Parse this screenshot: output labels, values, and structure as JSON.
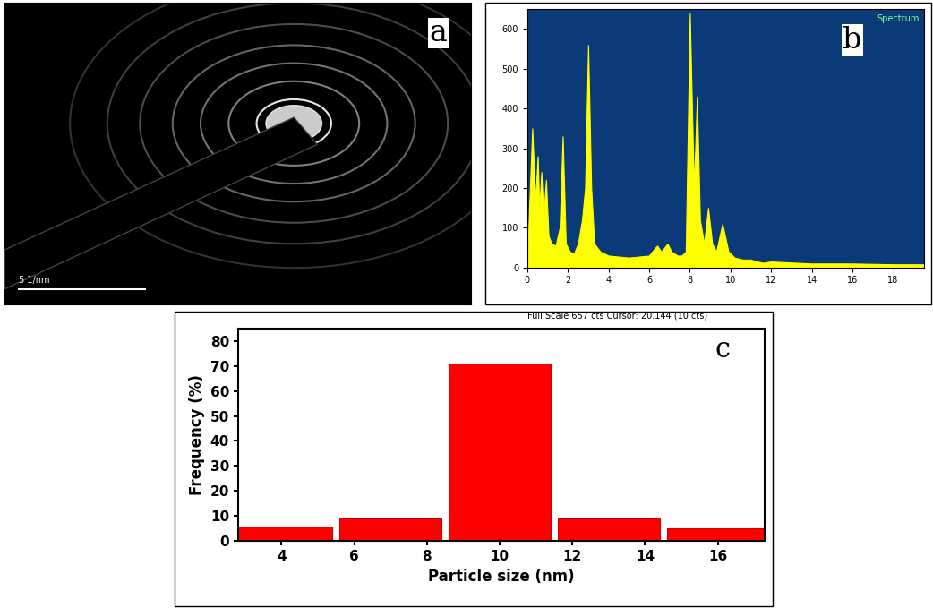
{
  "chart_data": [
    {
      "type": "image",
      "label": "a",
      "scale_bar": "5 1/nm"
    },
    {
      "type": "area",
      "label": "b",
      "title": "Spectrum",
      "footer": "Full Scale 657 cts Cursor: 20.144 (10 cts)",
      "x": [
        0,
        0.1,
        0.25,
        0.4,
        0.52,
        0.6,
        0.7,
        0.8,
        0.93,
        1.05,
        1.2,
        1.4,
        1.6,
        1.75,
        1.9,
        2.1,
        2.3,
        2.5,
        2.7,
        2.85,
        3.0,
        3.15,
        3.3,
        3.6,
        4.0,
        5.0,
        6.0,
        6.3,
        6.4,
        6.6,
        6.9,
        7.1,
        7.4,
        7.6,
        7.8,
        8.0,
        8.2,
        8.35,
        8.5,
        8.7,
        8.9,
        9.1,
        9.3,
        9.6,
        9.9,
        10.2,
        10.6,
        11.0,
        11.3,
        11.6,
        12,
        14,
        16,
        18,
        19.5
      ],
      "values": [
        0,
        150,
        350,
        170,
        280,
        150,
        240,
        130,
        220,
        80,
        60,
        55,
        100,
        330,
        60,
        40,
        35,
        60,
        120,
        200,
        560,
        200,
        60,
        40,
        30,
        25,
        30,
        50,
        55,
        40,
        60,
        40,
        30,
        30,
        40,
        640,
        200,
        430,
        120,
        60,
        150,
        60,
        40,
        110,
        40,
        25,
        20,
        20,
        15,
        12,
        15,
        10,
        10,
        8,
        8
      ],
      "color": "#ffff00",
      "xlim": [
        0,
        19.5
      ],
      "ylim": [
        0,
        650
      ],
      "xticks": [
        0,
        2,
        4,
        6,
        8,
        10,
        12,
        14,
        16,
        18
      ],
      "yticks": [
        0,
        100,
        200,
        300,
        400,
        500,
        600
      ]
    },
    {
      "type": "bar",
      "label": "c",
      "x": [
        4,
        7,
        10,
        13,
        16
      ],
      "values": [
        6,
        9,
        71,
        9,
        5
      ],
      "color": "#ff0000",
      "xlabel": "Particle size (nm)",
      "ylabel": "Frequency (%)",
      "xlim": [
        2.8,
        17.3
      ],
      "ylim": [
        0,
        85
      ],
      "xticks": [
        4,
        6,
        8,
        10,
        12,
        14,
        16
      ],
      "yticks": [
        0,
        10,
        20,
        30,
        40,
        50,
        60,
        70,
        80
      ]
    }
  ]
}
